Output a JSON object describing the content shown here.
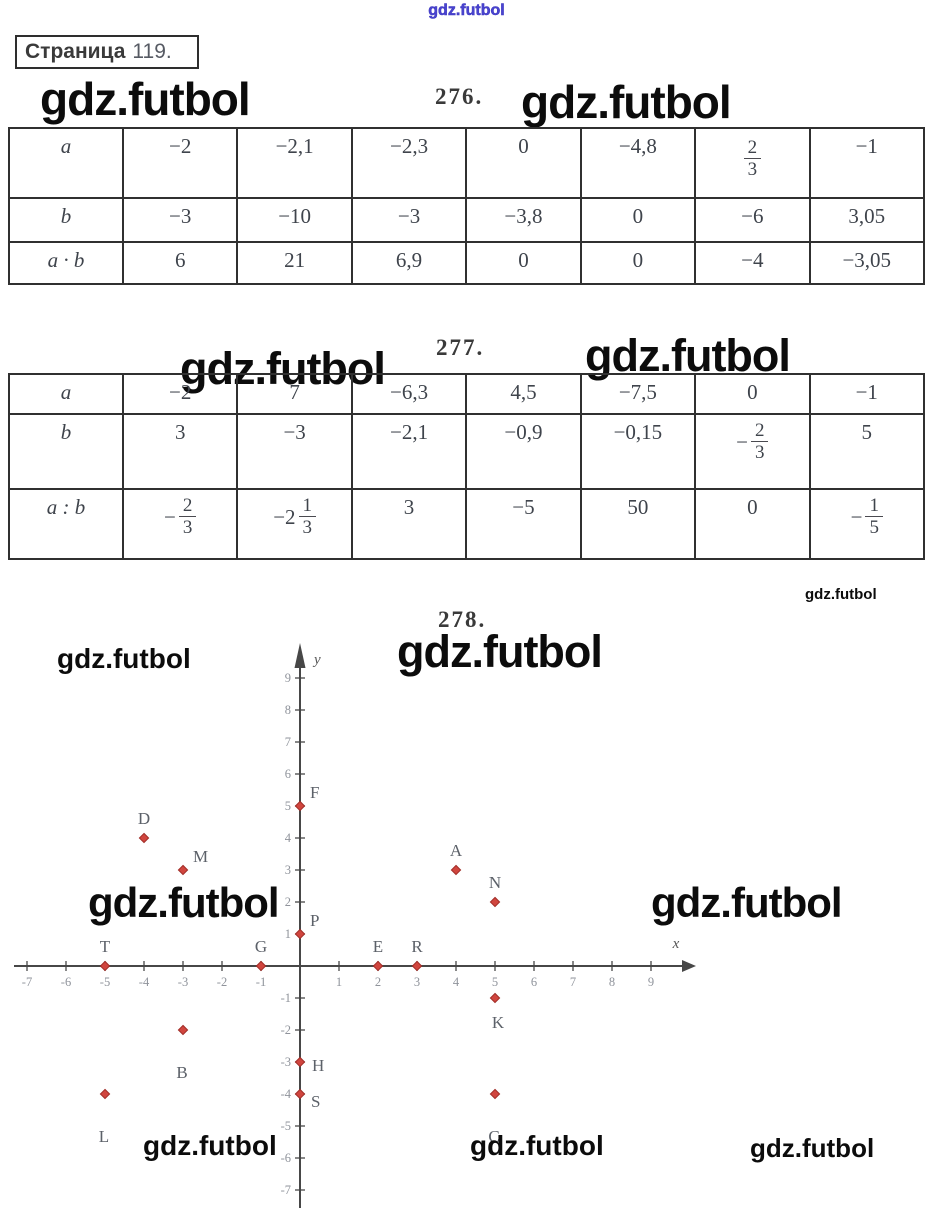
{
  "watermark_text": "gdz.futbol",
  "header": {
    "site_watermark": "gdz.futbol",
    "page_label": {
      "word": "Страница",
      "number": "119."
    }
  },
  "problem276": {
    "number": "276.",
    "table": {
      "row_labels": [
        "a",
        "b",
        "a · b"
      ],
      "rows": [
        {
          "label": "a",
          "cells": [
            "−2",
            "−2,1",
            "−2,3",
            "0",
            "−4,8",
            {
              "frac": [
                "2",
                "3"
              ]
            },
            "−1"
          ]
        },
        {
          "label": "b",
          "cells": [
            "−3",
            "−10",
            "−3",
            "−3,8",
            "0",
            "−6",
            "3,05"
          ]
        },
        {
          "label": "a · b",
          "cells": [
            "6",
            "21",
            "6,9",
            "0",
            "0",
            "−4",
            "−3,05"
          ]
        }
      ]
    }
  },
  "problem277": {
    "number": "277.",
    "table": {
      "row_labels": [
        "a",
        "b",
        "a : b"
      ],
      "rows": [
        {
          "label": "a",
          "cells": [
            "−2",
            "7",
            "−6,3",
            "4,5",
            "−7,5",
            "0",
            "−1"
          ]
        },
        {
          "label": "b",
          "cells": [
            "3",
            "−3",
            "−2,1",
            "−0,9",
            "−0,15",
            {
              "pre": "−",
              "frac": [
                "2",
                "3"
              ]
            },
            "5"
          ]
        },
        {
          "label": "a : b",
          "cells": [
            {
              "pre": "−",
              "frac": [
                "2",
                "3"
              ]
            },
            {
              "pre": "−2",
              "frac": [
                "1",
                "3"
              ]
            },
            "3",
            "−5",
            "50",
            "0",
            {
              "pre": "−",
              "frac": [
                "1",
                "5"
              ]
            }
          ]
        }
      ]
    }
  },
  "problem278": {
    "number": "278.",
    "chart_data": {
      "type": "scatter",
      "title": "",
      "xlabel": "x",
      "ylabel": "y",
      "xlim": [
        -7,
        9
      ],
      "ylim": [
        -7,
        9
      ],
      "x_ticks": [
        -7,
        -6,
        -5,
        -4,
        -3,
        -2,
        -1,
        1,
        2,
        3,
        4,
        5,
        6,
        7,
        8,
        9
      ],
      "y_ticks": [
        9,
        8,
        7,
        6,
        5,
        4,
        3,
        2,
        1,
        -1,
        -2,
        -3,
        -4,
        -5,
        -6,
        -7
      ],
      "grid": false,
      "marker": "diamond",
      "marker_color": "#d0453e",
      "points": [
        {
          "label": "A",
          "x": 4,
          "y": 3,
          "lp": "a"
        },
        {
          "label": "B",
          "x": -3,
          "y": -2,
          "lp": "bb"
        },
        {
          "label": "C",
          "x": 5,
          "y": -4,
          "lp": "bb"
        },
        {
          "label": "D",
          "x": -4,
          "y": 4,
          "lp": "a"
        },
        {
          "label": "E",
          "x": 2,
          "y": 0,
          "lp": "a"
        },
        {
          "label": "F",
          "x": 0,
          "y": 5,
          "lp": "ar"
        },
        {
          "label": "G",
          "x": -1,
          "y": 0,
          "lp": "a"
        },
        {
          "label": "H",
          "x": 0,
          "y": -3,
          "lp": "ru"
        },
        {
          "label": "K",
          "x": 5,
          "y": -1,
          "lp": "b"
        },
        {
          "label": "L",
          "x": -5,
          "y": -4,
          "lp": "bb"
        },
        {
          "label": "M",
          "x": -3,
          "y": 3,
          "lp": "ar"
        },
        {
          "label": "N",
          "x": 5,
          "y": 2,
          "lp": "a"
        },
        {
          "label": "P",
          "x": 0,
          "y": 1,
          "lp": "ar"
        },
        {
          "label": "R",
          "x": 3,
          "y": 0,
          "lp": "a"
        },
        {
          "label": "S",
          "x": 0,
          "y": -4,
          "lp": "r"
        },
        {
          "label": "T",
          "x": -5,
          "y": 0,
          "lp": "a"
        }
      ]
    }
  }
}
